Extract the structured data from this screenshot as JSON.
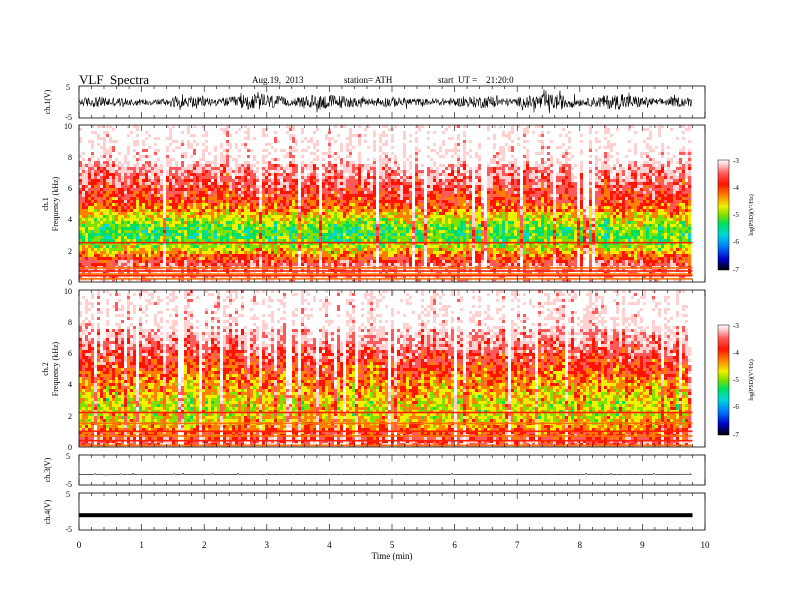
{
  "header": {
    "title": "VLF  Spectra",
    "date": "Aug.19,  2013",
    "station": "station= ATH",
    "start": "start  UT =    21:20:0"
  },
  "colorbar": {
    "label": "log(PSD)(V²/Hz)",
    "ticks": [
      "-3",
      "-4",
      "-5",
      "-6",
      "-7"
    ]
  },
  "chart_data": [
    {
      "type": "line",
      "name": "ch.1 waveform",
      "ylabel": "ch.1(V)",
      "ylim": [
        -5,
        5
      ],
      "yticks": [
        "5",
        "-5"
      ],
      "xlim": [
        0,
        10
      ],
      "description_values": {
        "typical_min": -2.5,
        "typical_max": 2.5
      }
    },
    {
      "type": "heatmap",
      "name": "ch.1 spectrogram",
      "ylabel": "ch.1",
      "ylabel2": "Frequency (kHz)",
      "ylim": [
        0,
        10
      ],
      "yticks": [
        "0",
        "2",
        "4",
        "6",
        "8",
        "10"
      ],
      "xlim": [
        0,
        10
      ],
      "zlim": [
        -7,
        -3
      ],
      "data_end_min": 9.8,
      "hum_lines_khz": [
        0.2,
        0.4,
        0.5,
        0.7,
        0.9,
        2.5
      ]
    },
    {
      "type": "heatmap",
      "name": "ch.2 spectrogram",
      "ylabel": "ch.2",
      "ylabel2": "Frequency (kHz)",
      "ylim": [
        0,
        10
      ],
      "yticks": [
        "0",
        "2",
        "4",
        "6",
        "8",
        "10"
      ],
      "xlim": [
        0,
        10
      ],
      "zlim": [
        -7,
        -3
      ],
      "data_end_min": 9.8,
      "hum_lines_khz": [
        0.1,
        0.4,
        0.7,
        1.0,
        1.5,
        2.2
      ]
    },
    {
      "type": "line",
      "name": "ch.3 waveform",
      "ylabel": "ch.3(V)",
      "ylim": [
        -5,
        5
      ],
      "yticks": [
        "5",
        "-5"
      ],
      "xlim": [
        0,
        10
      ],
      "baseline": -1.5
    },
    {
      "type": "line",
      "name": "ch.4 waveform",
      "ylabel": "ch.4(V)",
      "ylim": [
        -5,
        5
      ],
      "yticks": [
        "5",
        "-5"
      ],
      "xlim": [
        0,
        10
      ],
      "baseline": -1
    }
  ],
  "xaxis": {
    "label": "Time  (min)",
    "ticks": [
      "0",
      "1",
      "2",
      "3",
      "4",
      "5",
      "6",
      "7",
      "8",
      "9",
      "10"
    ]
  },
  "colors": {
    "spectro_scale": [
      "#000000",
      "#0000c8",
      "#0080ff",
      "#00d8d8",
      "#00e060",
      "#80e000",
      "#f0f000",
      "#ff8000",
      "#ff1400",
      "#ff5a5a",
      "#ffd0d0",
      "#ffffff"
    ]
  }
}
